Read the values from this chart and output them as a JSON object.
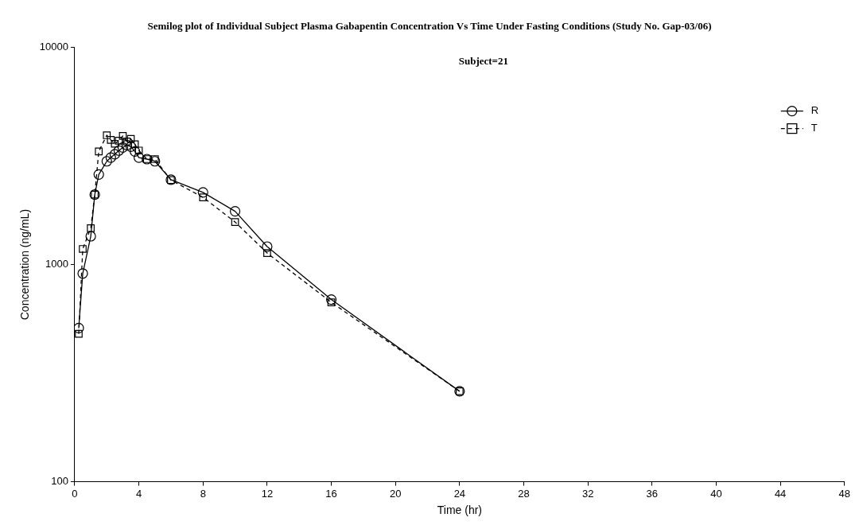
{
  "chart_data": {
    "type": "line",
    "title": "Semilog plot of Individual Subject Plasma Gabapentin Concentration Vs Time Under Fasting Conditions (Study No. Gap-03/06)",
    "annotations": [
      "Subject=21"
    ],
    "xlabel": "Time (hr)",
    "ylabel": "Concentration (ng/mL)",
    "log": "y",
    "xlim": [
      0,
      48
    ],
    "xticks": [
      0,
      4,
      8,
      12,
      16,
      20,
      24,
      28,
      32,
      36,
      40,
      44,
      48
    ],
    "ylim": [
      100,
      10000
    ],
    "yticks": [
      100,
      1000,
      10000
    ],
    "grid": false,
    "legend": "top right",
    "x": [
      0.25,
      0.5,
      1,
      1.25,
      1.5,
      2,
      2.25,
      2.5,
      2.75,
      3,
      3.25,
      3.5,
      3.75,
      4,
      4.5,
      5,
      6,
      8,
      10,
      12,
      16,
      24
    ],
    "series": [
      {
        "name": "R",
        "color": "#000000",
        "marker": "circle",
        "line_style": "solid",
        "values": [
          510,
          910,
          1350,
          2100,
          2600,
          2990,
          3110,
          3220,
          3350,
          3460,
          3550,
          3490,
          3320,
          3110,
          3060,
          2990,
          2460,
          2150,
          1760,
          1210,
          690,
          261
        ]
      },
      {
        "name": "T",
        "color": "#000000",
        "marker": "square",
        "line_style": "dashed",
        "values": [
          480,
          1180,
          1470,
          2100,
          3320,
          3940,
          3750,
          3600,
          3720,
          3910,
          3690,
          3790,
          3580,
          3350,
          3060,
          3060,
          2450,
          2040,
          1570,
          1130,
          670,
          261
        ]
      }
    ]
  }
}
